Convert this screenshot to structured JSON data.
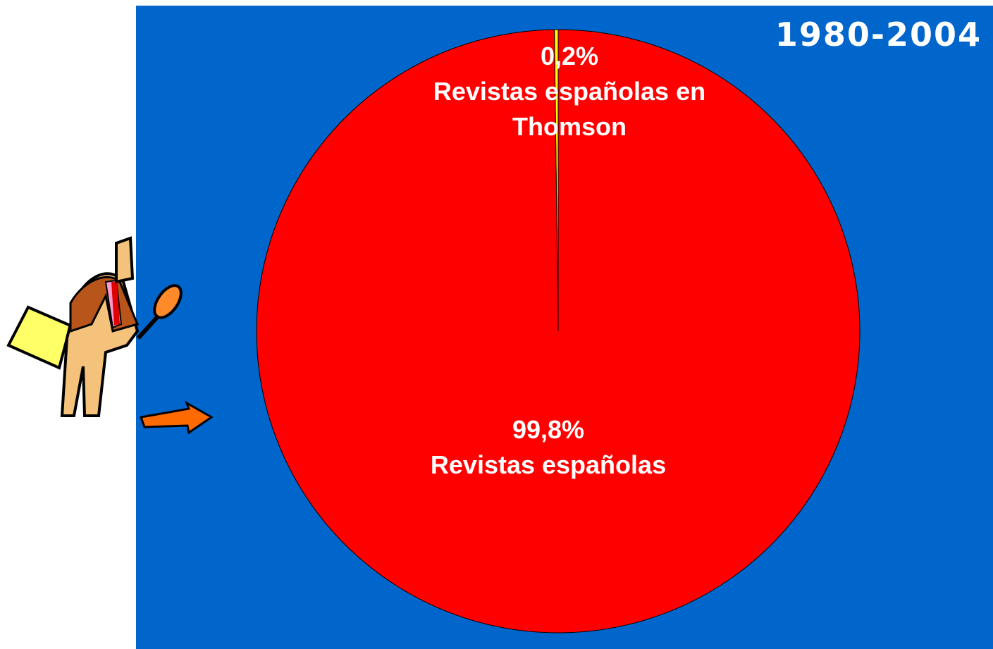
{
  "chart_data": {
    "type": "pie",
    "title": "1980-2004",
    "categories": [
      "Revistas españolas en Thomson",
      "Revistas españolas"
    ],
    "values": [
      0.2,
      99.8
    ],
    "value_labels": [
      "0,2%",
      "99,8%"
    ],
    "colors": [
      "#ffff00",
      "#ff0000"
    ]
  }
}
